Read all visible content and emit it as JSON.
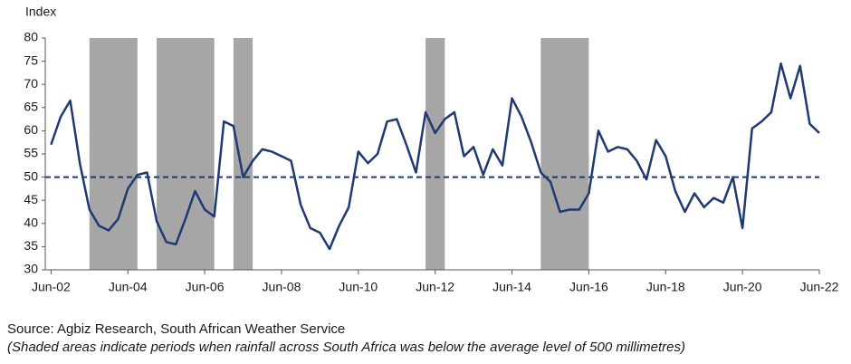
{
  "chart_data": {
    "type": "line",
    "y_label": "Index",
    "source": "Source: Agbiz Research, South African Weather Service",
    "note": "(Shaded areas indicate periods when rainfall across South Africa was below the average level of 500 millimetres)",
    "x": [
      2002.5,
      2002.75,
      2003,
      2003.25,
      2003.5,
      2003.75,
      2004,
      2004.25,
      2004.5,
      2004.75,
      2005,
      2005.25,
      2005.5,
      2005.75,
      2006,
      2006.25,
      2006.5,
      2006.75,
      2007,
      2007.25,
      2007.5,
      2007.75,
      2008,
      2008.25,
      2008.5,
      2008.75,
      2009,
      2009.25,
      2009.5,
      2009.75,
      2010,
      2010.25,
      2010.5,
      2010.75,
      2011,
      2011.25,
      2011.5,
      2011.75,
      2012,
      2012.25,
      2012.5,
      2012.75,
      2013,
      2013.25,
      2013.5,
      2013.75,
      2014,
      2014.25,
      2014.5,
      2014.75,
      2015,
      2015.25,
      2015.5,
      2015.75,
      2016,
      2016.25,
      2016.5,
      2016.75,
      2017,
      2017.25,
      2017.5,
      2017.75,
      2018,
      2018.25,
      2018.5,
      2018.75,
      2019,
      2019.25,
      2019.5,
      2019.75,
      2020,
      2020.25,
      2020.5,
      2020.75,
      2021,
      2021.25,
      2021.5,
      2021.75,
      2022,
      2022.25,
      2022.5
    ],
    "series": [
      {
        "color": "#1f3a73",
        "values": [
          57,
          63,
          66.5,
          53,
          43,
          39.5,
          38.5,
          41,
          47.5,
          50.5,
          51,
          40.5,
          36,
          35.5,
          41,
          47,
          43,
          41.5,
          62,
          61,
          50,
          53.5,
          56,
          55.5,
          54.5,
          53.5,
          44,
          39,
          38,
          34.5,
          39.5,
          43.5,
          55.5,
          53,
          55,
          62,
          62.5,
          57,
          51,
          64,
          59.5,
          62.5,
          64,
          54.5,
          56.5,
          50.5,
          56,
          52.5,
          67,
          63,
          57.5,
          51,
          49,
          42.5,
          43,
          43,
          46.5,
          60,
          55.5,
          56.5,
          56,
          53.5,
          49.5,
          58,
          54.5,
          47,
          42.5,
          46.5,
          43.5,
          45.5,
          44.5,
          50,
          39,
          60.5,
          62,
          64,
          74.5,
          67,
          74,
          61.5,
          59.5
        ]
      }
    ],
    "shaded_periods": [
      [
        2003.5,
        2004.75
      ],
      [
        2005.25,
        2006.75
      ],
      [
        2007.25,
        2007.75
      ],
      [
        2012.25,
        2012.75
      ],
      [
        2015.25,
        2016.5
      ]
    ],
    "shade_color": "#a6a6a6",
    "reference_line": {
      "value": 50,
      "color": "#1f3a73",
      "style": "dashed"
    },
    "xlim": [
      2002.35,
      2022.5
    ],
    "xticks": [
      {
        "value": 2002.5,
        "label": "Jun-02"
      },
      {
        "value": 2004.5,
        "label": "Jun-04"
      },
      {
        "value": 2006.5,
        "label": "Jun-06"
      },
      {
        "value": 2008.5,
        "label": "Jun-08"
      },
      {
        "value": 2010.5,
        "label": "Jun-10"
      },
      {
        "value": 2012.5,
        "label": "Jun-12"
      },
      {
        "value": 2014.5,
        "label": "Jun-14"
      },
      {
        "value": 2016.5,
        "label": "Jun-16"
      },
      {
        "value": 2018.5,
        "label": "Jun-18"
      },
      {
        "value": 2020.5,
        "label": "Jun-20"
      },
      {
        "value": 2022.5,
        "label": "Jun-22"
      }
    ],
    "ylim": [
      30,
      80
    ],
    "yticks": [
      30,
      35,
      40,
      45,
      50,
      55,
      60,
      65,
      70,
      75,
      80
    ],
    "grid": false
  }
}
